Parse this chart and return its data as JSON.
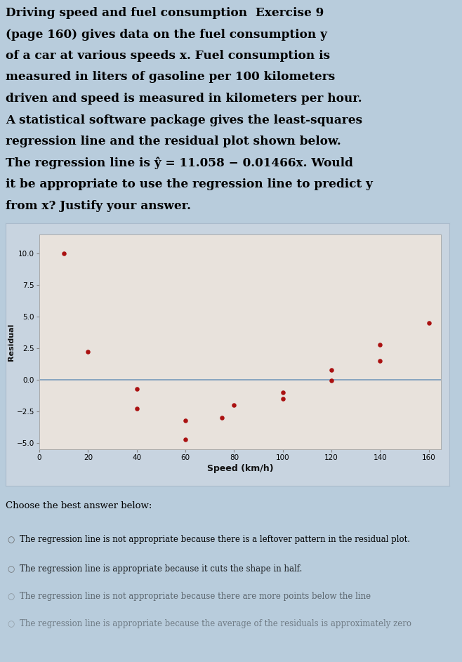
{
  "lines": [
    "Driving speed and fuel consumption  Exercise 9",
    "(page 160) gives data on the fuel consumption y",
    "of a car at various speeds x. Fuel consumption is",
    "measured in liters of gasoline per 100 kilometers",
    "driven and speed is measured in kilometers per hour.",
    "A statistical software package gives the least-squares",
    "regression line and the residual plot shown below.",
    "The regression line is ŷ = 11.058 − 0.01466x. Would",
    "it be appropriate to use the regression line to predict y",
    "from x? Justify your answer."
  ],
  "points_x": [
    10,
    20,
    40,
    40,
    60,
    60,
    75,
    80,
    100,
    100,
    120,
    120,
    140,
    140,
    160
  ],
  "points_y": [
    10.0,
    2.2,
    -0.7,
    -2.3,
    -3.2,
    -4.7,
    -3.0,
    -2.0,
    -1.5,
    -1.0,
    -0.05,
    0.8,
    1.5,
    2.8,
    4.5
  ],
  "xlabel": "Speed (km/h)",
  "ylabel": "Residual",
  "xlim": [
    0,
    165
  ],
  "ylim": [
    -5.5,
    11.5
  ],
  "xticks": [
    0,
    20,
    40,
    60,
    80,
    100,
    120,
    140,
    160
  ],
  "yticks": [
    -5.0,
    -2.5,
    0.0,
    2.5,
    5.0,
    7.5,
    10.0
  ],
  "dot_color": "#aa1111",
  "dot_size": 22,
  "bg_outer": "#b8ccdc",
  "bg_panel": "#c8d4e0",
  "bg_plot": "#e8e2dc",
  "hline_color": "#7799bb",
  "hline_lw": 1.2,
  "answer_prompt": "Choose the best answer below:",
  "answers": [
    "The regression line is not appropriate because there is a leftover pattern in the residual plot.",
    "The regression line is appropriate because it cuts the shape in half.",
    "The regression line is not appropriate because there are more points below the line",
    "The regression line is appropriate because the average of the residuals is approximately zero"
  ],
  "answer_alphas": [
    1.0,
    0.85,
    0.5,
    0.4
  ]
}
